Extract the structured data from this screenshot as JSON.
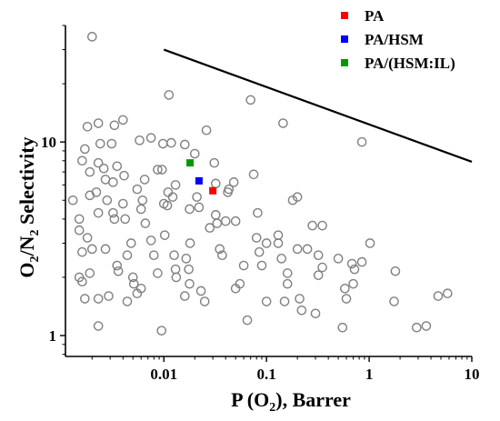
{
  "chart_data": {
    "type": "scatter",
    "x_scale": "log",
    "y_scale": "log",
    "xlim": [
      0.0011,
      10
    ],
    "ylim": [
      0.78,
      40
    ],
    "x_ticks": [
      {
        "v": 0.01,
        "label": "0.01"
      },
      {
        "v": 0.1,
        "label": "0.1"
      },
      {
        "v": 1,
        "label": "1"
      },
      {
        "v": 10,
        "label": "10"
      }
    ],
    "y_ticks": [
      {
        "v": 1,
        "label": "1"
      },
      {
        "v": 10,
        "label": "10"
      }
    ],
    "xlabel": "P (O2), Barrer",
    "xlabel_parts": {
      "main": "P (O",
      "sub": "2",
      "tail": "), Barrer"
    },
    "ylabel": "O2/N2 Selectivity",
    "ylabel_parts": {
      "a": "O",
      "sub1": "2",
      "b": "/N",
      "sub2": "2",
      "c": " Selectivity"
    },
    "legend_position": "top-right",
    "grid": false,
    "upper_bound_line": {
      "x": [
        0.01,
        10
      ],
      "y": [
        30,
        7.9
      ],
      "color": "#000000"
    },
    "series": [
      {
        "name": "PA",
        "color": "#ff0000",
        "marker": "square",
        "points": [
          [
            0.03,
            5.6
          ]
        ]
      },
      {
        "name": "PA/HSM",
        "color": "#0000ff",
        "marker": "square",
        "points": [
          [
            0.022,
            6.3
          ]
        ]
      },
      {
        "name": "PA/(HSM:IL)",
        "color": "#009900",
        "marker": "square",
        "points": [
          [
            0.018,
            7.8
          ]
        ]
      },
      {
        "name": "",
        "color": "#808080",
        "marker": "open-circle",
        "points": [
          [
            0.002,
            35
          ],
          [
            0.0013,
            5.0
          ],
          [
            0.0015,
            4.0
          ],
          [
            0.0015,
            3.5
          ],
          [
            0.0016,
            2.7
          ],
          [
            0.0015,
            2.0
          ],
          [
            0.0016,
            1.9
          ],
          [
            0.0017,
            1.55
          ],
          [
            0.0016,
            8.0
          ],
          [
            0.0017,
            9.2
          ],
          [
            0.0018,
            12.0
          ],
          [
            0.0019,
            7.0
          ],
          [
            0.0019,
            5.3
          ],
          [
            0.0018,
            3.2
          ],
          [
            0.002,
            2.8
          ],
          [
            0.0019,
            2.1
          ],
          [
            0.0023,
            12.5
          ],
          [
            0.0023,
            7.8
          ],
          [
            0.0024,
            9.8
          ],
          [
            0.0022,
            5.5
          ],
          [
            0.0023,
            4.3
          ],
          [
            0.0023,
            1.55
          ],
          [
            0.0023,
            1.12
          ],
          [
            0.0026,
            7.3
          ],
          [
            0.0027,
            6.4
          ],
          [
            0.0028,
            5.0
          ],
          [
            0.0027,
            2.8
          ],
          [
            0.0029,
            1.6
          ],
          [
            0.0031,
            9.8
          ],
          [
            0.0033,
            12.2
          ],
          [
            0.0032,
            6.2
          ],
          [
            0.0035,
            7.5
          ],
          [
            0.0032,
            4.3
          ],
          [
            0.0033,
            4.0
          ],
          [
            0.0035,
            2.3
          ],
          [
            0.0036,
            2.15
          ],
          [
            0.004,
            13.0
          ],
          [
            0.0041,
            6.7
          ],
          [
            0.004,
            4.8
          ],
          [
            0.0042,
            4.0
          ],
          [
            0.0044,
            2.6
          ],
          [
            0.0048,
            3.0
          ],
          [
            0.005,
            2.0
          ],
          [
            0.0051,
            1.85
          ],
          [
            0.0055,
            1.65
          ],
          [
            0.0044,
            1.5
          ],
          [
            0.0058,
            10.2
          ],
          [
            0.0055,
            5.7
          ],
          [
            0.006,
            4.5
          ],
          [
            0.0062,
            5.0
          ],
          [
            0.0065,
            6.4
          ],
          [
            0.0066,
            3.8
          ],
          [
            0.006,
            1.75
          ],
          [
            0.0075,
            10.5
          ],
          [
            0.0075,
            3.1
          ],
          [
            0.008,
            2.6
          ],
          [
            0.0087,
            2.1
          ],
          [
            0.0087,
            7.2
          ],
          [
            0.0095,
            1.06
          ],
          [
            0.0098,
            9.8
          ],
          [
            0.0096,
            7.2
          ],
          [
            0.01,
            4.8
          ],
          [
            0.0108,
            4.7
          ],
          [
            0.0102,
            3.3
          ],
          [
            0.011,
            5.5
          ],
          [
            0.0112,
            17.5
          ],
          [
            0.0118,
            9.9
          ],
          [
            0.0122,
            5.2
          ],
          [
            0.013,
            6.0
          ],
          [
            0.013,
            2.2
          ],
          [
            0.0132,
            2.0
          ],
          [
            0.0126,
            2.6
          ],
          [
            0.016,
            9.7
          ],
          [
            0.016,
            1.6
          ],
          [
            0.0165,
            2.5
          ],
          [
            0.0178,
            4.5
          ],
          [
            0.018,
            3.0
          ],
          [
            0.0175,
            2.2
          ],
          [
            0.0178,
            1.85
          ],
          [
            0.02,
            8.7
          ],
          [
            0.021,
            5.2
          ],
          [
            0.022,
            4.6
          ],
          [
            0.023,
            1.7
          ],
          [
            0.025,
            1.5
          ],
          [
            0.026,
            11.5
          ],
          [
            0.028,
            3.6
          ],
          [
            0.032,
            6.1
          ],
          [
            0.032,
            4.2
          ],
          [
            0.033,
            3.8
          ],
          [
            0.031,
            7.8
          ],
          [
            0.037,
            2.6
          ],
          [
            0.035,
            2.8
          ],
          [
            0.04,
            3.9
          ],
          [
            0.043,
            5.7
          ],
          [
            0.042,
            5.5
          ],
          [
            0.048,
            6.2
          ],
          [
            0.05,
            3.9
          ],
          [
            0.05,
            1.75
          ],
          [
            0.055,
            1.85
          ],
          [
            0.06,
            2.3
          ],
          [
            0.065,
            1.2
          ],
          [
            0.07,
            16.5
          ],
          [
            0.075,
            6.8
          ],
          [
            0.082,
            4.3
          ],
          [
            0.08,
            3.2
          ],
          [
            0.085,
            2.7
          ],
          [
            0.09,
            2.3
          ],
          [
            0.1,
            3.0
          ],
          [
            0.1,
            1.5
          ],
          [
            0.13,
            3.3
          ],
          [
            0.13,
            3.0
          ],
          [
            0.145,
            12.5
          ],
          [
            0.14,
            2.5
          ],
          [
            0.16,
            2.1
          ],
          [
            0.16,
            1.85
          ],
          [
            0.18,
            5.0
          ],
          [
            0.15,
            1.5
          ],
          [
            0.2,
            2.8
          ],
          [
            0.2,
            5.2
          ],
          [
            0.21,
            1.55
          ],
          [
            0.22,
            1.35
          ],
          [
            0.25,
            2.8
          ],
          [
            0.28,
            3.7
          ],
          [
            0.3,
            1.3
          ],
          [
            0.32,
            2.6
          ],
          [
            0.32,
            2.05
          ],
          [
            0.35,
            3.7
          ],
          [
            0.35,
            2.25
          ],
          [
            0.5,
            2.5
          ],
          [
            0.55,
            1.1
          ],
          [
            0.58,
            1.75
          ],
          [
            0.6,
            1.55
          ],
          [
            0.68,
            2.35
          ],
          [
            0.72,
            2.2
          ],
          [
            0.7,
            1.85
          ],
          [
            0.85,
            10.0
          ],
          [
            0.85,
            2.4
          ],
          [
            1.02,
            3.0
          ],
          [
            1.8,
            2.15
          ],
          [
            1.75,
            1.5
          ],
          [
            2.9,
            1.1
          ],
          [
            3.6,
            1.12
          ],
          [
            4.7,
            1.6
          ],
          [
            5.8,
            1.65
          ]
        ]
      }
    ]
  }
}
